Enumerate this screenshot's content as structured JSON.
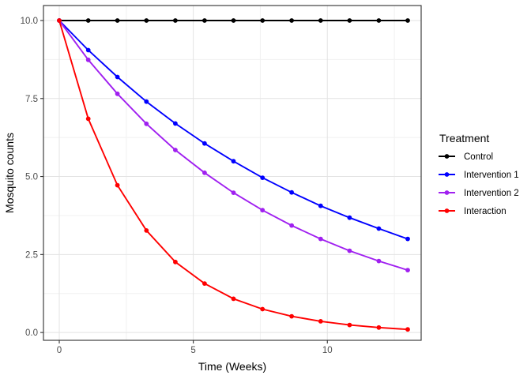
{
  "chart_data": {
    "type": "line",
    "title": "",
    "xlabel": "Time (Weeks)",
    "ylabel": "Mosquito counts",
    "legend": {
      "title": "Treatment",
      "position": "right"
    },
    "x": [
      0,
      1.08,
      2.17,
      3.25,
      4.33,
      5.42,
      6.5,
      7.58,
      8.67,
      9.75,
      10.83,
      11.92,
      13
    ],
    "series": [
      {
        "name": "Control",
        "color": "#000000",
        "values": [
          10,
          10,
          10,
          10,
          10,
          10,
          10,
          10,
          10,
          10,
          10,
          10,
          10
        ]
      },
      {
        "name": "Intervention 1",
        "color": "#0000FF",
        "values": [
          10,
          9.05,
          8.19,
          7.4,
          6.7,
          6.06,
          5.49,
          4.96,
          4.49,
          4.06,
          3.68,
          3.33,
          3.0
        ]
      },
      {
        "name": "Intervention 2",
        "color": "#A020F0",
        "values": [
          10,
          8.74,
          7.65,
          6.69,
          5.85,
          5.12,
          4.48,
          3.92,
          3.43,
          3.0,
          2.62,
          2.29,
          2.0
        ]
      },
      {
        "name": "Interaction",
        "color": "#FF0000",
        "values": [
          10,
          6.85,
          4.72,
          3.27,
          2.26,
          1.57,
          1.08,
          0.75,
          0.52,
          0.36,
          0.24,
          0.16,
          0.1
        ]
      }
    ],
    "xlim": [
      -0.59,
      13.5
    ],
    "ylim": [
      -0.25,
      10.48
    ],
    "x_ticks": {
      "values": [
        0,
        5,
        10
      ],
      "labels": [
        "0",
        "5",
        "10"
      ]
    },
    "y_ticks": {
      "values": [
        0,
        2.5,
        5,
        7.5,
        10
      ],
      "labels": [
        "0.0",
        "2.5",
        "5.0",
        "7.5",
        "10.0"
      ]
    },
    "x_minor_ticks": [
      2.5,
      7.5,
      12.5
    ],
    "y_minor_ticks": [
      1.25,
      3.75,
      6.25,
      8.75
    ],
    "grid": "major+minor",
    "point_marker": "circle"
  },
  "theme": {
    "background": "#FFFFFF",
    "panel_fill": "#FFFFFF",
    "panel_border": "#2F2F2F",
    "grid_major": "#E3E3E3",
    "grid_minor": "#F1F1F1",
    "tick_color": "#333333",
    "tick_label_color": "#4D4D4D",
    "axis_title_color": "#000000"
  }
}
